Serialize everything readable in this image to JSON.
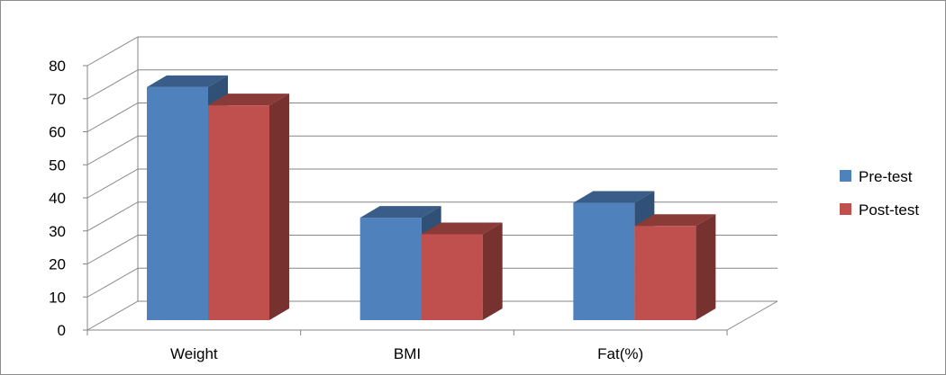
{
  "chart_data": {
    "type": "bar",
    "categories": [
      "Weight",
      "BMI",
      "Fat(%)"
    ],
    "series": [
      {
        "name": "Pre-test",
        "values": [
          70.5,
          31,
          35.5
        ],
        "color": "#4F81BD"
      },
      {
        "name": "Post-test",
        "values": [
          65,
          26,
          28.5
        ],
        "color": "#C0504D"
      }
    ],
    "yticks": [
      "0",
      "10",
      "20",
      "30",
      "40",
      "50",
      "60",
      "70",
      "80"
    ],
    "ylim": [
      0,
      80
    ],
    "grid": true,
    "legend_position": "right",
    "style": "3d-clustered-column"
  }
}
